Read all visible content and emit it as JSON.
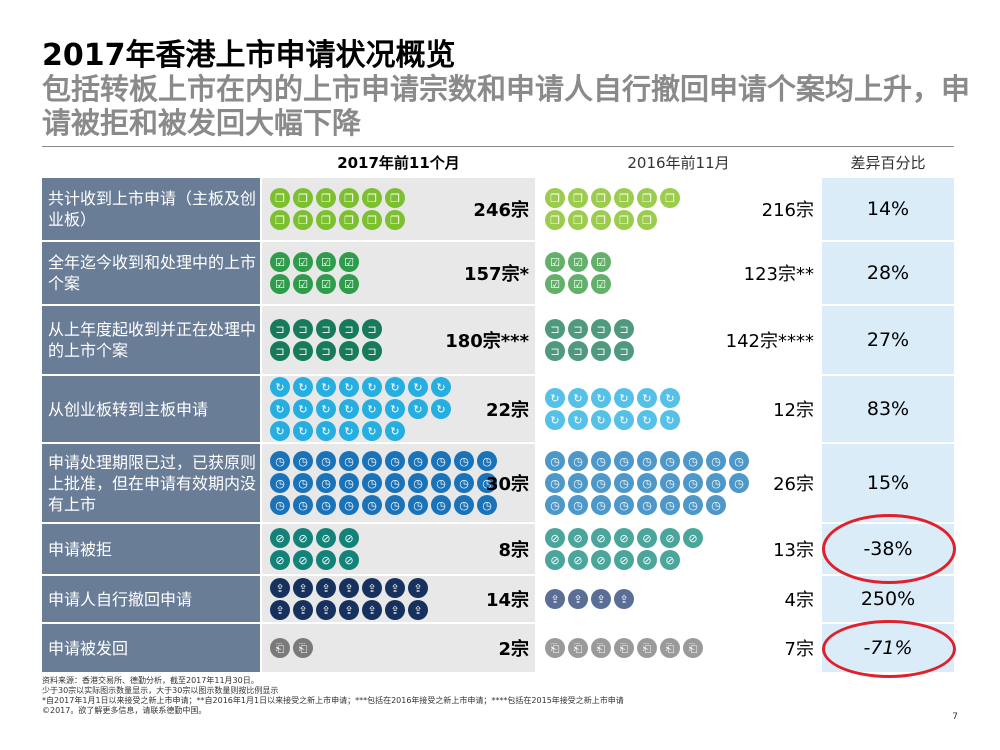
{
  "title": "2017年香港上市申请状况概览",
  "subtitle": "包括转板上市在内的上市申请宗数和申请人自行撤回申请个案均上升，申请被拒和被发回大幅下降",
  "columns": {
    "y2017": "2017年前11个月",
    "y2016": "2016年前11月",
    "diff": "差异百分比"
  },
  "rows": [
    {
      "label": "共计收到上市申请（主板及创业板）",
      "c17": "246宗",
      "c16": "216宗",
      "diff": "14%",
      "icon17": "document-icon",
      "icon16": "document-icon",
      "color17": "#7cbf2f",
      "color16": "#9ccc4e",
      "n17": 12,
      "n16": 11,
      "cols17": 6,
      "cols16": 6,
      "glyph": "❐"
    },
    {
      "label": "全年迄今收到和处理中的上市个案",
      "c17": "157宗*",
      "c16": "123宗**",
      "diff": "28%",
      "icon17": "checkbox-icon",
      "icon16": "checkbox-icon",
      "color17": "#2e9c4b",
      "color16": "#62b06a",
      "n17": 8,
      "n16": 6,
      "cols17": 4,
      "cols16": 3,
      "glyph": "☑"
    },
    {
      "label": "从上年度起收到并正在处理中的上市个案",
      "c17": "180宗***",
      "c16": "142宗****",
      "diff": "27%",
      "icon17": "inbox-icon",
      "icon16": "inbox-icon",
      "color17": "#177a5b",
      "color16": "#4f9a7e",
      "n17": 10,
      "n16": 8,
      "cols17": 5,
      "cols16": 4,
      "glyph": "⊐"
    },
    {
      "label": "从创业板转到主板申请",
      "c17": "22宗",
      "c16": "12宗",
      "diff": "83%",
      "icon17": "transfer-icon",
      "icon16": "transfer-icon",
      "color17": "#27aee0",
      "color16": "#55c0e8",
      "n17": 22,
      "n16": 12,
      "cols17": 8,
      "cols16": 6,
      "glyph": "↻"
    },
    {
      "label": "申请处理期限已过，已获原则上批准，但在申请有效期内没有上市",
      "c17": "30宗",
      "c16": "26宗",
      "diff": "15%",
      "icon17": "clock-icon",
      "icon16": "clock-icon",
      "color17": "#1a73b8",
      "color16": "#4d97c9",
      "n17": 30,
      "n16": 26,
      "cols17": 10,
      "cols16": 9,
      "glyph": "◷"
    },
    {
      "label": "申请被拒",
      "c17": "8宗",
      "c16": "13宗",
      "diff": "-38%",
      "icon17": "prohibited-icon",
      "icon16": "prohibited-icon",
      "color17": "#13837a",
      "color16": "#4aa59b",
      "n17": 8,
      "n16": 13,
      "cols17": 4,
      "cols16": 7,
      "glyph": "⊘"
    },
    {
      "label": "申请人自行撤回申请",
      "c17": "14宗",
      "c16": "4宗",
      "diff": "250%",
      "icon17": "withdraw-icon",
      "icon16": "withdraw-icon",
      "color17": "#17315e",
      "color16": "#5a6e96",
      "n17": 14,
      "n16": 4,
      "cols17": 7,
      "cols16": 4,
      "glyph": "⇪"
    },
    {
      "label": "申请被发回",
      "c17": "2宗",
      "c16": "7宗",
      "diff": "-71%",
      "icon17": "return-icon",
      "icon16": "return-icon",
      "color17": "#7a7a7a",
      "color16": "#9a9a9a",
      "n17": 2,
      "n16": 7,
      "cols17": 2,
      "cols16": 7,
      "glyph": "⎗"
    }
  ],
  "footnotes": [
    "资料来源：香港交易所、德勤分析，截至2017年11月30日。",
    "少于30宗以实际图示数量显示，大于30宗以图示数量则按比例显示",
    "*自2017年1月1日以来接受之新上市申请；**自2016年1月1日以来接受之新上市申请；***包括在2016年接受之新上市申请；****包括在2015年接受之新上市申请",
    "©2017。欲了解更多信息，请联系德勤中国。"
  ],
  "page_number": "7",
  "colors": {
    "label_bg": "#6a7d97",
    "col2017_bg": "#e8e8e8",
    "diff_bg": "#d9ecf8",
    "highlight": "#e0202a"
  }
}
